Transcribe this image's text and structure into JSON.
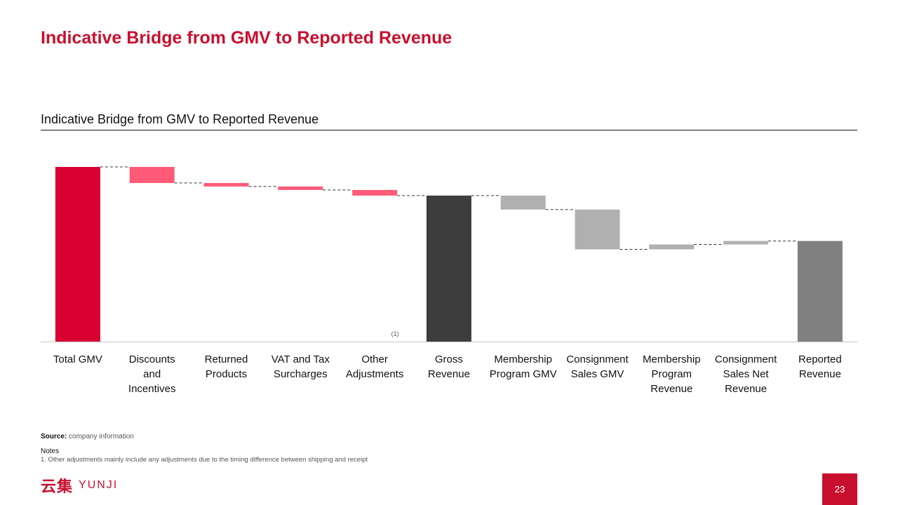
{
  "slide_title": "Indicative Bridge from GMV to Reported Revenue",
  "section_title": "Indicative Bridge from GMV to Reported Revenue",
  "chart_data": {
    "type": "bar",
    "subtype": "waterfall",
    "title": "",
    "categories": [
      "Total GMV",
      "Discounts and Incentives",
      "Returned Products",
      "VAT and Tax Surcharges",
      "Other Adjustments",
      "Gross Revenue",
      "Membership Program GMV",
      "Consignment Sales GMV",
      "Membership Program Revenue",
      "Consignment Sales Net Revenue",
      "Reported Revenue"
    ],
    "label_lines": [
      [
        "Total GMV"
      ],
      [
        "Discounts",
        "and",
        "Incentives"
      ],
      [
        "Returned",
        "Products"
      ],
      [
        "VAT and Tax",
        "Surcharges"
      ],
      [
        "Other",
        "Adjustments"
      ],
      [
        "Gross",
        "Revenue"
      ],
      [
        "Membership",
        "Program GMV"
      ],
      [
        "Consignment",
        "Sales GMV"
      ],
      [
        "Membership",
        "Program",
        "Revenue"
      ],
      [
        "Consignment",
        "Sales Net",
        "Revenue"
      ],
      [
        "Reported",
        "Revenue"
      ]
    ],
    "bars": [
      {
        "kind": "total",
        "start": 0,
        "end": 100,
        "color": "#d90032"
      },
      {
        "kind": "delta",
        "start": 100,
        "end": 90.8,
        "color": "#ff5a78"
      },
      {
        "kind": "delta",
        "start": 90.8,
        "end": 88.8,
        "color": "#ff5a78"
      },
      {
        "kind": "delta",
        "start": 88.8,
        "end": 86.8,
        "color": "#ff5a78"
      },
      {
        "kind": "delta",
        "start": 86.8,
        "end": 83.6,
        "color": "#ff5a78"
      },
      {
        "kind": "total",
        "start": 0,
        "end": 83.6,
        "color": "#3d3d3d"
      },
      {
        "kind": "delta",
        "start": 83.6,
        "end": 75.6,
        "color": "#b0b0b0"
      },
      {
        "kind": "delta",
        "start": 75.6,
        "end": 52.8,
        "color": "#b0b0b0"
      },
      {
        "kind": "delta",
        "start": 52.8,
        "end": 55.6,
        "color": "#b0b0b0"
      },
      {
        "kind": "delta",
        "start": 55.6,
        "end": 57.6,
        "color": "#b0b0b0"
      },
      {
        "kind": "total",
        "start": 0,
        "end": 57.6,
        "color": "#808080"
      }
    ],
    "ylim": [
      0,
      100
    ],
    "grid": false,
    "legend": "none",
    "annotation": {
      "category_index": 4,
      "text": "(1)"
    }
  },
  "source_label": "Source:",
  "source_text": "company information",
  "notes_title": "Notes",
  "note_1": "1.  Other adjustments mainly include any adjustments due to the timing difference between shipping and receipt",
  "logo": {
    "mark": "云集",
    "word": "YUNJI"
  },
  "page_number": "23"
}
